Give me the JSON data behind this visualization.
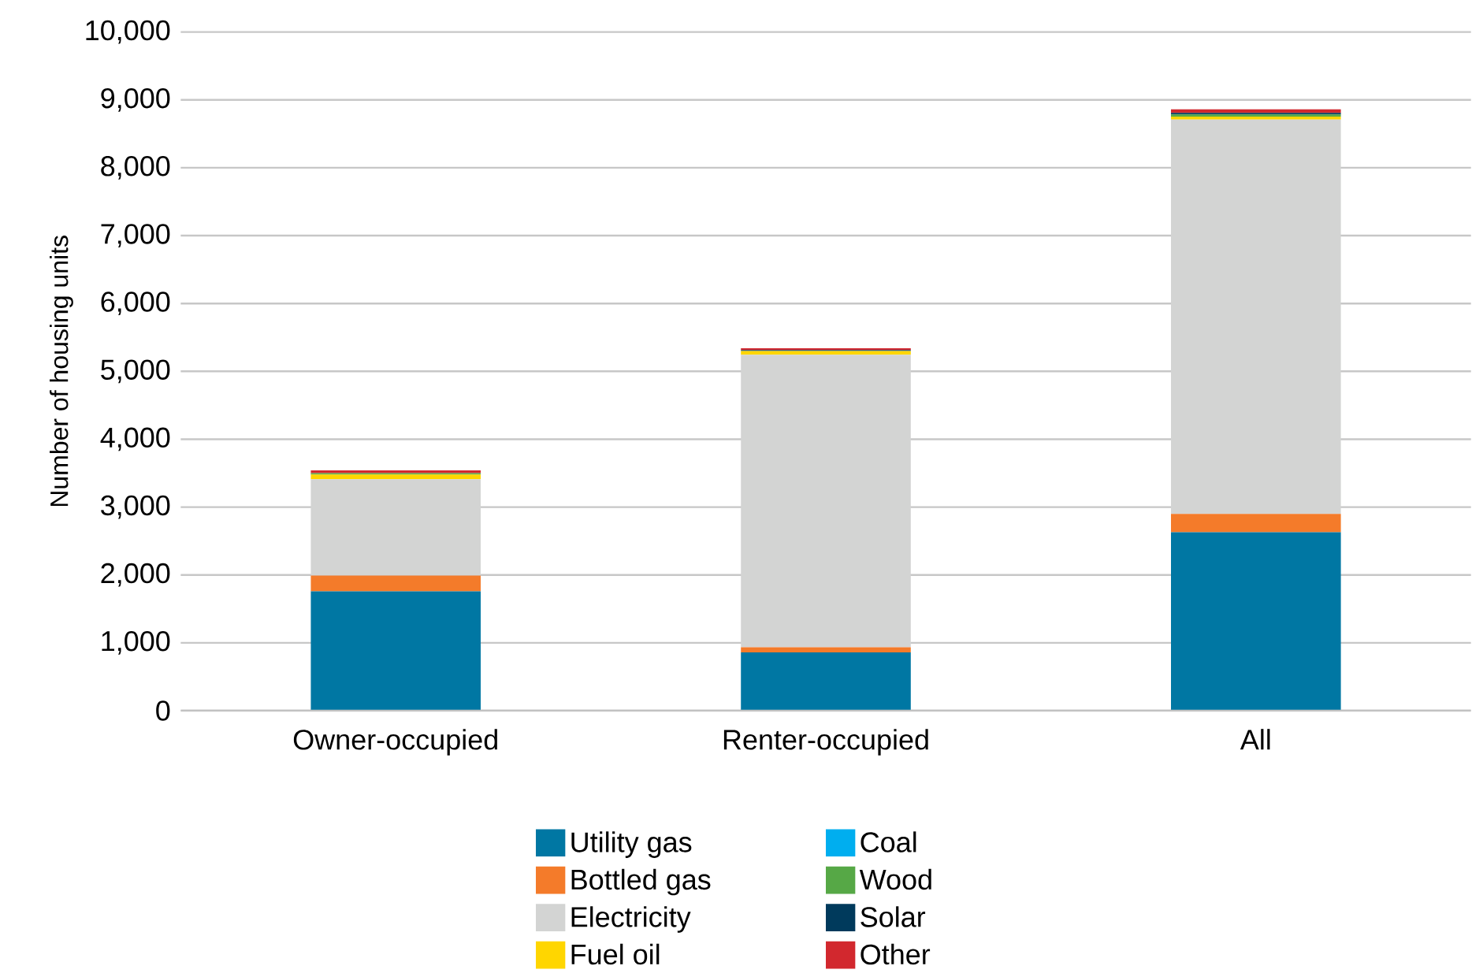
{
  "chart_data": {
    "type": "bar",
    "stacked": true,
    "ylabel": "Number of housing units",
    "categories": [
      "Owner-occupied",
      "Renter-occupied",
      "All"
    ],
    "ylim": [
      0,
      10000
    ],
    "yticks": [
      0,
      {
        "value": 1000,
        "label": "1,000"
      },
      {
        "value": 2000,
        "label": "2,000"
      },
      {
        "value": 3000,
        "label": "3,000"
      },
      {
        "value": 4000,
        "label": "4,000"
      },
      {
        "value": 5000,
        "label": "5,000"
      },
      {
        "value": 6000,
        "label": "6,000"
      },
      {
        "value": 7000,
        "label": "7,000"
      },
      {
        "value": 8000,
        "label": "8,000"
      },
      {
        "value": 9000,
        "label": "9,000"
      },
      {
        "value": 10000,
        "label": "10,000"
      }
    ],
    "grid": "y",
    "legend": "bottom",
    "series": [
      {
        "name": "Utility gas",
        "color": "#0077a3",
        "values": [
          1760,
          860,
          2630
        ]
      },
      {
        "name": "Bottled gas",
        "color": "#f47b2a",
        "values": [
          230,
          75,
          270
        ]
      },
      {
        "name": "Electricity",
        "color": "#d3d4d3",
        "values": [
          1420,
          4310,
          5810
        ]
      },
      {
        "name": "Fuel oil",
        "color": "#ffd600",
        "values": [
          70,
          55,
          45
        ]
      },
      {
        "name": "Coal",
        "color": "#00aeef",
        "values": [
          0,
          0,
          0
        ]
      },
      {
        "name": "Wood",
        "color": "#56a846",
        "values": [
          20,
          0,
          30
        ]
      },
      {
        "name": "Solar",
        "color": "#003a5c",
        "values": [
          0,
          15,
          25
        ]
      },
      {
        "name": "Other",
        "color": "#d2282e",
        "values": [
          40,
          25,
          50
        ]
      }
    ]
  }
}
